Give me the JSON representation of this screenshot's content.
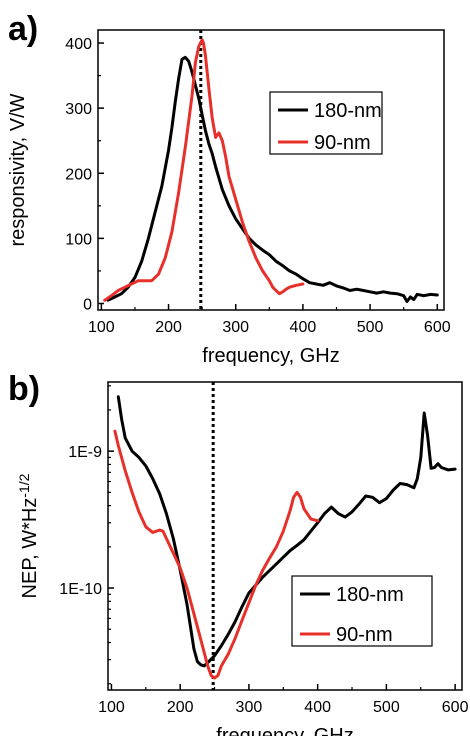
{
  "chart_data": [
    {
      "panel_label": "a)",
      "type": "line",
      "xlabel": "frequency, GHz",
      "ylabel": "responsivity, V/W",
      "xlim": [
        95,
        610
      ],
      "ylim": [
        -10,
        420
      ],
      "yscale": "linear",
      "x_ticks": [
        100,
        200,
        300,
        400,
        500,
        600
      ],
      "y_ticks": [
        0,
        100,
        200,
        300,
        400
      ],
      "x_tick_labels": [
        "100",
        "200",
        "300",
        "400",
        "500",
        "600"
      ],
      "y_tick_labels": [
        "0",
        "100",
        "200",
        "300",
        "400"
      ],
      "vline": 248,
      "legend": {
        "position": "upper-right",
        "entries": [
          {
            "label": "180-nm",
            "color": "#000000"
          },
          {
            "label": "90-nm",
            "color": "#e8302a"
          }
        ]
      },
      "series": [
        {
          "name": "180-nm",
          "color": "#000000",
          "points": [
            [
              110,
              5
            ],
            [
              120,
              10
            ],
            [
              130,
              15
            ],
            [
              140,
              25
            ],
            [
              150,
              40
            ],
            [
              160,
              65
            ],
            [
              170,
              100
            ],
            [
              180,
              140
            ],
            [
              190,
              180
            ],
            [
              200,
              235
            ],
            [
              205,
              270
            ],
            [
              210,
              310
            ],
            [
              215,
              345
            ],
            [
              220,
              375
            ],
            [
              225,
              378
            ],
            [
              230,
              372
            ],
            [
              235,
              355
            ],
            [
              240,
              335
            ],
            [
              245,
              315
            ],
            [
              250,
              290
            ],
            [
              255,
              265
            ],
            [
              260,
              245
            ],
            [
              265,
              230
            ],
            [
              270,
              210
            ],
            [
              280,
              175
            ],
            [
              290,
              150
            ],
            [
              300,
              130
            ],
            [
              310,
              115
            ],
            [
              320,
              100
            ],
            [
              330,
              90
            ],
            [
              340,
              82
            ],
            [
              350,
              75
            ],
            [
              360,
              65
            ],
            [
              370,
              58
            ],
            [
              380,
              50
            ],
            [
              390,
              45
            ],
            [
              400,
              38
            ],
            [
              410,
              32
            ],
            [
              420,
              30
            ],
            [
              430,
              28
            ],
            [
              440,
              32
            ],
            [
              450,
              27
            ],
            [
              460,
              24
            ],
            [
              470,
              20
            ],
            [
              480,
              22
            ],
            [
              490,
              20
            ],
            [
              500,
              18
            ],
            [
              510,
              16
            ],
            [
              520,
              18
            ],
            [
              530,
              16
            ],
            [
              540,
              15
            ],
            [
              550,
              12
            ],
            [
              555,
              3
            ],
            [
              560,
              10
            ],
            [
              565,
              6
            ],
            [
              570,
              14
            ],
            [
              580,
              12
            ],
            [
              590,
              14
            ],
            [
              600,
              13
            ]
          ]
        },
        {
          "name": "90-nm",
          "color": "#e8302a",
          "points": [
            [
              105,
              5
            ],
            [
              115,
              12
            ],
            [
              125,
              20
            ],
            [
              135,
              25
            ],
            [
              145,
              30
            ],
            [
              155,
              35
            ],
            [
              165,
              35
            ],
            [
              175,
              35
            ],
            [
              185,
              45
            ],
            [
              195,
              70
            ],
            [
              205,
              110
            ],
            [
              215,
              170
            ],
            [
              225,
              240
            ],
            [
              235,
              320
            ],
            [
              240,
              370
            ],
            [
              245,
              395
            ],
            [
              250,
              405
            ],
            [
              252,
              400
            ],
            [
              255,
              380
            ],
            [
              260,
              330
            ],
            [
              265,
              285
            ],
            [
              270,
              255
            ],
            [
              275,
              262
            ],
            [
              280,
              250
            ],
            [
              285,
              225
            ],
            [
              290,
              195
            ],
            [
              300,
              160
            ],
            [
              310,
              125
            ],
            [
              320,
              95
            ],
            [
              330,
              70
            ],
            [
              340,
              50
            ],
            [
              350,
              35
            ],
            [
              355,
              25
            ],
            [
              360,
              20
            ],
            [
              365,
              15
            ],
            [
              370,
              18
            ],
            [
              375,
              22
            ],
            [
              380,
              25
            ],
            [
              390,
              28
            ],
            [
              400,
              30
            ]
          ]
        }
      ]
    },
    {
      "panel_label": "b)",
      "type": "line",
      "xlabel": "frequency, GHz",
      "ylabel": "NEP, W*Hz",
      "ylabel_superscript": "-1/2",
      "xlim": [
        95,
        610
      ],
      "ylim": [
        1.8e-11,
        3.2e-09
      ],
      "yscale": "log",
      "x_ticks": [
        100,
        200,
        300,
        400,
        500,
        600
      ],
      "x_tick_labels": [
        "100",
        "200",
        "300",
        "400",
        "500",
        "600"
      ],
      "y_ticks": [
        1e-10,
        1e-09
      ],
      "y_tick_labels": [
        "1E-10",
        "1E-9"
      ],
      "vline": 248,
      "legend": {
        "position": "lower-right",
        "entries": [
          {
            "label": "180-nm",
            "color": "#000000"
          },
          {
            "label": "90-nm",
            "color": "#e8302a"
          }
        ]
      },
      "series": [
        {
          "name": "180-nm",
          "color": "#000000",
          "points": [
            [
              110,
              2.5e-09
            ],
            [
              115,
              1.7e-09
            ],
            [
              120,
              1.25e-09
            ],
            [
              130,
              1e-09
            ],
            [
              140,
              9e-10
            ],
            [
              150,
              7.8e-10
            ],
            [
              160,
              6.3e-10
            ],
            [
              170,
              4.9e-10
            ],
            [
              180,
              3.5e-10
            ],
            [
              190,
              2.3e-10
            ],
            [
              200,
              1.35e-10
            ],
            [
              210,
              7.6e-11
            ],
            [
              220,
              3.6e-11
            ],
            [
              225,
              2.9e-11
            ],
            [
              230,
              2.75e-11
            ],
            [
              235,
              2.7e-11
            ],
            [
              240,
              2.85e-11
            ],
            [
              250,
              3.2e-11
            ],
            [
              260,
              3.8e-11
            ],
            [
              270,
              4.6e-11
            ],
            [
              280,
              5.7e-11
            ],
            [
              290,
              7.3e-11
            ],
            [
              300,
              9.2e-11
            ],
            [
              310,
              1.05e-10
            ],
            [
              320,
              1.2e-10
            ],
            [
              330,
              1.34e-10
            ],
            [
              340,
              1.5e-10
            ],
            [
              350,
              1.68e-10
            ],
            [
              360,
              1.88e-10
            ],
            [
              370,
              2.05e-10
            ],
            [
              380,
              2.25e-10
            ],
            [
              390,
              2.6e-10
            ],
            [
              400,
              3e-10
            ],
            [
              410,
              3.5e-10
            ],
            [
              420,
              3.9e-10
            ],
            [
              430,
              3.5e-10
            ],
            [
              440,
              3.3e-10
            ],
            [
              450,
              3.6e-10
            ],
            [
              460,
              4.1e-10
            ],
            [
              470,
              4.7e-10
            ],
            [
              480,
              4.6e-10
            ],
            [
              490,
              4.2e-10
            ],
            [
              500,
              4.5e-10
            ],
            [
              510,
              5.2e-10
            ],
            [
              520,
              5.8e-10
            ],
            [
              530,
              5.7e-10
            ],
            [
              540,
              5.4e-10
            ],
            [
              545,
              6.3e-10
            ],
            [
              550,
              9e-10
            ],
            [
              555,
              1.9e-09
            ],
            [
              560,
              1.3e-09
            ],
            [
              565,
              7.5e-10
            ],
            [
              570,
              7.6e-10
            ],
            [
              575,
              8.1e-10
            ],
            [
              580,
              7.6e-10
            ],
            [
              590,
              7.3e-10
            ],
            [
              600,
              7.4e-10
            ]
          ]
        },
        {
          "name": "90-nm",
          "color": "#e8302a",
          "points": [
            [
              105,
              1.4e-09
            ],
            [
              110,
              1.1e-09
            ],
            [
              120,
              7.2e-10
            ],
            [
              130,
              5e-10
            ],
            [
              140,
              3.6e-10
            ],
            [
              150,
              2.8e-10
            ],
            [
              160,
              2.55e-10
            ],
            [
              170,
              2.65e-10
            ],
            [
              175,
              2.6e-10
            ],
            [
              180,
              2.3e-10
            ],
            [
              190,
              1.8e-10
            ],
            [
              200,
              1.4e-10
            ],
            [
              210,
              1e-10
            ],
            [
              220,
              6.5e-11
            ],
            [
              230,
              4.2e-11
            ],
            [
              240,
              2.7e-11
            ],
            [
              245,
              2.3e-11
            ],
            [
              250,
              2.2e-11
            ],
            [
              255,
              2.3e-11
            ],
            [
              260,
              2.7e-11
            ],
            [
              270,
              3.3e-11
            ],
            [
              280,
              4.3e-11
            ],
            [
              290,
              5.8e-11
            ],
            [
              300,
              7.8e-11
            ],
            [
              310,
              1.05e-10
            ],
            [
              320,
              1.35e-10
            ],
            [
              330,
              1.65e-10
            ],
            [
              340,
              2e-10
            ],
            [
              350,
              2.6e-10
            ],
            [
              360,
              3.7e-10
            ],
            [
              365,
              4.6e-10
            ],
            [
              370,
              5e-10
            ],
            [
              375,
              4.6e-10
            ],
            [
              380,
              3.8e-10
            ],
            [
              390,
              3.2e-10
            ],
            [
              400,
              3.1e-10
            ]
          ]
        }
      ]
    }
  ],
  "annotation_color": "#000000"
}
